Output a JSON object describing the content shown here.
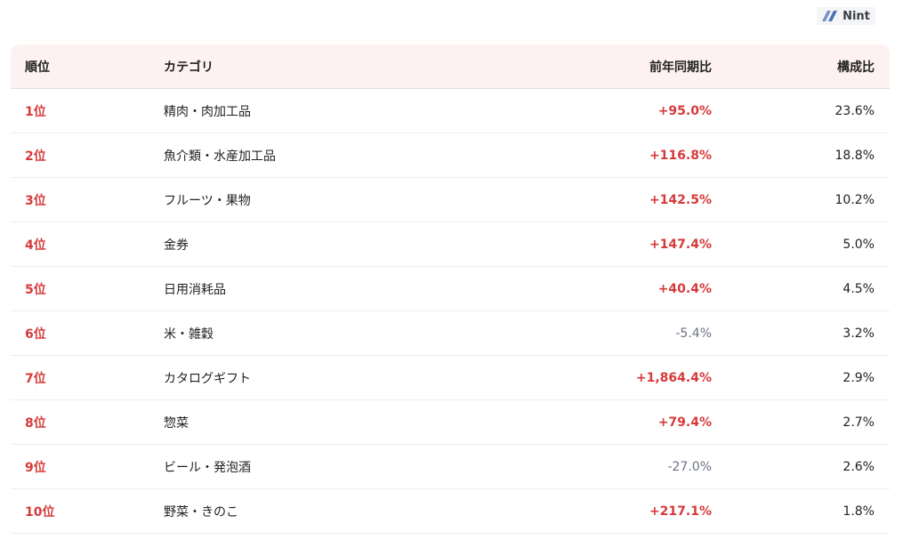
{
  "logo": {
    "text": "Nint"
  },
  "headers": {
    "rank": "順位",
    "category": "カテゴリ",
    "yoy": "前年同期比",
    "share": "構成比"
  },
  "rows": [
    {
      "rank": "1位",
      "category": "精肉・肉加工品",
      "yoy": "+95.0%",
      "share": "23.6%",
      "trend": "up"
    },
    {
      "rank": "2位",
      "category": "魚介類・水産加工品",
      "yoy": "+116.8%",
      "share": "18.8%",
      "trend": "up"
    },
    {
      "rank": "3位",
      "category": "フルーツ・果物",
      "yoy": "+142.5%",
      "share": "10.2%",
      "trend": "up"
    },
    {
      "rank": "4位",
      "category": "金券",
      "yoy": "+147.4%",
      "share": "5.0%",
      "trend": "up"
    },
    {
      "rank": "5位",
      "category": "日用消耗品",
      "yoy": "+40.4%",
      "share": "4.5%",
      "trend": "up"
    },
    {
      "rank": "6位",
      "category": "米・雑穀",
      "yoy": "-5.4%",
      "share": "3.2%",
      "trend": "down"
    },
    {
      "rank": "7位",
      "category": "カタログギフト",
      "yoy": "+1,864.4%",
      "share": "2.9%",
      "trend": "up"
    },
    {
      "rank": "8位",
      "category": "惣菜",
      "yoy": "+79.4%",
      "share": "2.7%",
      "trend": "up"
    },
    {
      "rank": "9位",
      "category": "ビール・発泡酒",
      "yoy": "-27.0%",
      "share": "2.6%",
      "trend": "down"
    },
    {
      "rank": "10位",
      "category": "野菜・きのこ",
      "yoy": "+217.1%",
      "share": "1.8%",
      "trend": "up"
    }
  ],
  "colors": {
    "accent": "#d63a3a",
    "header_bg": "#fdf1f1",
    "negative": "#6b7280"
  }
}
